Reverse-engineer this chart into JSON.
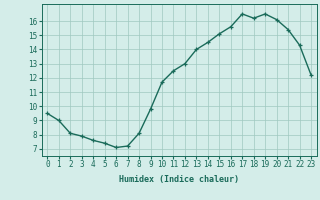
{
  "x": [
    0,
    1,
    2,
    3,
    4,
    5,
    6,
    7,
    8,
    9,
    10,
    11,
    12,
    13,
    14,
    15,
    16,
    17,
    18,
    19,
    20,
    21,
    22,
    23
  ],
  "y": [
    9.5,
    9.0,
    8.1,
    7.9,
    7.6,
    7.4,
    7.1,
    7.2,
    8.1,
    9.8,
    11.7,
    12.5,
    13.0,
    14.0,
    14.5,
    15.1,
    15.6,
    16.5,
    16.2,
    16.5,
    16.1,
    15.4,
    14.3,
    12.2
  ],
  "line_color": "#1a6b5a",
  "marker": "+",
  "marker_size": 3,
  "bg_color": "#d4ede9",
  "grid_color": "#a0c8c0",
  "xlabel": "Humidex (Indice chaleur)",
  "xlim": [
    -0.5,
    23.5
  ],
  "ylim": [
    6.5,
    17.2
  ],
  "yticks": [
    7,
    8,
    9,
    10,
    11,
    12,
    13,
    14,
    15,
    16
  ],
  "xticks": [
    0,
    1,
    2,
    3,
    4,
    5,
    6,
    7,
    8,
    9,
    10,
    11,
    12,
    13,
    14,
    15,
    16,
    17,
    18,
    19,
    20,
    21,
    22,
    23
  ],
  "xlabel_fontsize": 6.0,
  "tick_fontsize": 5.5,
  "line_width": 1.0
}
